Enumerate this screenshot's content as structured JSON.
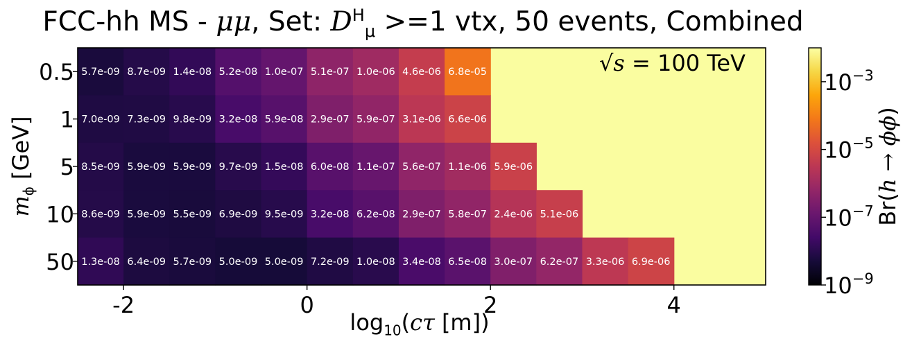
{
  "title": {
    "prefix": "FCC-hh MS - ",
    "channel": "μμ",
    "set_text": ", Set: ",
    "sel_symbol": "D",
    "sel_sup": "H",
    "sel_sub": "μ",
    "suffix": " >=1 vtx, 50 events, Combined"
  },
  "annotation": {
    "lhs": "√s",
    "rhs": " = 100 TeV"
  },
  "xlabel": {
    "pre": "log",
    "sub": "10",
    "mid": "(",
    "sym": "cτ",
    "post": " [m])"
  },
  "ylabel": {
    "sym": "m",
    "sub": "ϕ",
    "post": " [GeV]"
  },
  "colorbar_label": {
    "pre": "Br(",
    "sym": "h → ϕϕ",
    "post": ")"
  },
  "chart_data": {
    "type": "heatmap",
    "colormap": "inferno",
    "color_scale": "log",
    "color_range": [
      1e-09,
      0.01
    ],
    "fill_color": "#fafda0",
    "x_bin_width": 0.5,
    "x_first_bin_center": -2.25,
    "xlim": [
      -2.5,
      5.0
    ],
    "xticks": [
      -2,
      0,
      2,
      4
    ],
    "xtick_labels": [
      "-2",
      "0",
      "2",
      "4"
    ],
    "y_categories": [
      "0.5",
      "1",
      "5",
      "10",
      "50"
    ],
    "colorbar_ticks": [
      {
        "value": 0.001,
        "base": "10",
        "exp": "−3"
      },
      {
        "value": 1e-05,
        "base": "10",
        "exp": "−5"
      },
      {
        "value": 1e-07,
        "base": "10",
        "exp": "−7"
      },
      {
        "value": 1e-09,
        "base": "10",
        "exp": "−9"
      }
    ],
    "rows": [
      {
        "mass": "0.5",
        "values": [
          "5.7e-09",
          "8.7e-09",
          "1.4e-08",
          "5.2e-08",
          "1.0e-07",
          "5.1e-07",
          "1.0e-06",
          "4.6e-06",
          "6.8e-05"
        ]
      },
      {
        "mass": "1",
        "values": [
          "7.0e-09",
          "7.3e-09",
          "9.8e-09",
          "3.2e-08",
          "5.9e-08",
          "2.9e-07",
          "5.9e-07",
          "3.1e-06",
          "6.6e-06"
        ]
      },
      {
        "mass": "5",
        "values": [
          "8.5e-09",
          "5.9e-09",
          "5.9e-09",
          "9.7e-09",
          "1.5e-08",
          "6.0e-08",
          "1.1e-07",
          "5.6e-07",
          "1.1e-06",
          "5.9e-06"
        ]
      },
      {
        "mass": "10",
        "values": [
          "8.6e-09",
          "5.9e-09",
          "5.5e-09",
          "6.9e-09",
          "9.5e-09",
          "3.2e-08",
          "6.2e-08",
          "2.9e-07",
          "5.8e-07",
          "2.4e-06",
          "5.1e-06"
        ]
      },
      {
        "mass": "50",
        "values": [
          "1.3e-08",
          "6.4e-09",
          "5.7e-09",
          "5.0e-09",
          "5.0e-09",
          "7.2e-09",
          "1.0e-08",
          "3.4e-08",
          "6.5e-08",
          "3.0e-07",
          "6.2e-07",
          "3.3e-06",
          "6.9e-06"
        ]
      }
    ]
  }
}
